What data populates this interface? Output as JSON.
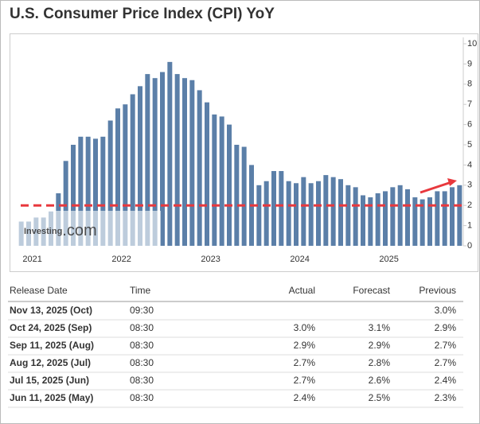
{
  "chart_data": {
    "type": "bar",
    "title": "U.S. Consumer Price Index (CPI) YoY",
    "categories": [
      null,
      null,
      null,
      "2021",
      null,
      null,
      null,
      null,
      null,
      null,
      null,
      null,
      null,
      null,
      null,
      "2022",
      null,
      null,
      null,
      null,
      null,
      null,
      null,
      null,
      null,
      null,
      null,
      "2023",
      null,
      null,
      null,
      null,
      null,
      null,
      null,
      null,
      null,
      null,
      null,
      "2024",
      null,
      null,
      null,
      null,
      null,
      null,
      null,
      null,
      null,
      null,
      null,
      "2025",
      null,
      null,
      null,
      null,
      null,
      null,
      null,
      null
    ],
    "values": [
      1.2,
      1.2,
      1.4,
      1.4,
      1.7,
      2.6,
      4.2,
      5.0,
      5.4,
      5.4,
      5.3,
      5.4,
      6.2,
      6.8,
      7.0,
      7.5,
      7.9,
      8.5,
      8.3,
      8.6,
      9.1,
      8.5,
      8.3,
      8.2,
      7.7,
      7.1,
      6.5,
      6.4,
      6.0,
      5.0,
      4.9,
      4.0,
      3.0,
      3.2,
      3.7,
      3.7,
      3.2,
      3.1,
      3.4,
      3.1,
      3.2,
      3.5,
      3.4,
      3.3,
      3.0,
      2.9,
      2.5,
      2.4,
      2.6,
      2.7,
      2.9,
      3.0,
      2.8,
      2.4,
      2.3,
      2.4,
      2.7,
      2.7,
      2.9,
      3.0
    ],
    "color": "#5b7fa8",
    "ylim": [
      0,
      10
    ],
    "yticks": [
      0,
      1,
      2,
      3,
      4,
      5,
      6,
      7,
      8,
      9,
      10
    ],
    "reference_line": 2,
    "reference_color": "#e8383d",
    "watermark": {
      "brand": "Investing",
      "suffix": ".com"
    }
  },
  "table": {
    "header": [
      "Release Date",
      "Time",
      "Actual",
      "Forecast",
      "Previous"
    ],
    "rows": [
      [
        "Nov 13, 2025 (Oct)",
        "09:30",
        "",
        "",
        "3.0%"
      ],
      [
        "Oct 24, 2025 (Sep)",
        "08:30",
        "3.0%",
        "3.1%",
        "2.9%"
      ],
      [
        "Sep 11, 2025 (Aug)",
        "08:30",
        "2.9%",
        "2.9%",
        "2.7%"
      ],
      [
        "Aug 12, 2025 (Jul)",
        "08:30",
        "2.7%",
        "2.8%",
        "2.7%"
      ],
      [
        "Jul 15, 2025 (Jun)",
        "08:30",
        "2.7%",
        "2.6%",
        "2.4%"
      ],
      [
        "Jun 11, 2025 (May)",
        "08:30",
        "2.4%",
        "2.5%",
        "2.3%"
      ]
    ],
    "actual_colors": [
      "#333333",
      "#e0201f",
      "#333333",
      "#e0201f",
      "#2ca02c",
      "#e0201f"
    ]
  }
}
